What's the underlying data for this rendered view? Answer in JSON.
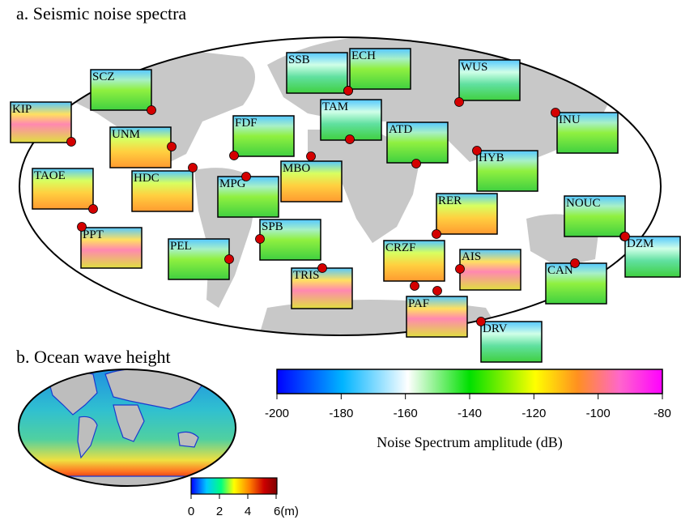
{
  "panel_a": {
    "title": "a. Seismic noise spectra",
    "stations": [
      {
        "code": "KIP"
      },
      {
        "code": "SCZ"
      },
      {
        "code": "SSB"
      },
      {
        "code": "ECH"
      },
      {
        "code": "WUS"
      },
      {
        "code": "TAM"
      },
      {
        "code": "UNM"
      },
      {
        "code": "FDF"
      },
      {
        "code": "INU"
      },
      {
        "code": "ATD"
      },
      {
        "code": "HYB"
      },
      {
        "code": "TAOE"
      },
      {
        "code": "HDC"
      },
      {
        "code": "MPG"
      },
      {
        "code": "MBO"
      },
      {
        "code": "RER"
      },
      {
        "code": "NOUC"
      },
      {
        "code": "PPT"
      },
      {
        "code": "SPB"
      },
      {
        "code": "PEL"
      },
      {
        "code": "CRZF"
      },
      {
        "code": "AIS"
      },
      {
        "code": "DZM"
      },
      {
        "code": "TRIS"
      },
      {
        "code": "CAN"
      },
      {
        "code": "PAF"
      },
      {
        "code": "DRV"
      }
    ]
  },
  "colorbar_a": {
    "ticks": [
      "-200",
      "-180",
      "-160",
      "-140",
      "-120",
      "-100",
      "-80"
    ],
    "label": "Noise Spectrum amplitude (dB)"
  },
  "panel_b": {
    "title": "b. Ocean wave height",
    "ticks": [
      "0",
      "2",
      "4",
      "6(m)"
    ]
  },
  "colors": {
    "ocean_a": "#ffffff",
    "land": "#c8c8c8",
    "station_dot": "#d40000",
    "spectrum_stops": [
      "#0000ff",
      "#00b4ff",
      "#ffffff",
      "#00e000",
      "#ffff00",
      "#ff9020",
      "#ff66cc",
      "#ff00ff"
    ],
    "wave_stops": [
      "#0000ff",
      "#00c8ff",
      "#00ff80",
      "#ffff00",
      "#ff8000",
      "#cc0000",
      "#800000"
    ]
  }
}
